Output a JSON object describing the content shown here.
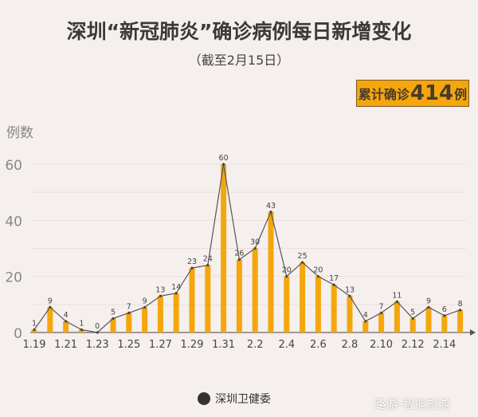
{
  "title": "深圳“新冠肺炎”确诊病例每日新增变化",
  "subtitle": "（截至2月15日）",
  "badge": {
    "prefix": "累计确诊",
    "total": "414",
    "suffix": "例"
  },
  "footer": {
    "source": "深圳卫健委"
  },
  "watermark": "路游-智能旅游",
  "colors": {
    "bar": "#f4a60c",
    "line": "#555555",
    "background": "#f5efed"
  },
  "chart_data": {
    "type": "bar",
    "ylabel": "例数",
    "ylim": [
      0,
      60
    ],
    "yticks": [
      0,
      20,
      40,
      60
    ],
    "grid": true,
    "categories": [
      "1.19",
      "1.20",
      "1.21",
      "1.22",
      "1.23",
      "1.24",
      "1.25",
      "1.26",
      "1.27",
      "1.28",
      "1.29",
      "1.30",
      "1.31",
      "2.1",
      "2.2",
      "2.3",
      "2.4",
      "2.5",
      "2.6",
      "2.7",
      "2.8",
      "2.9",
      "2.10",
      "2.11",
      "2.12",
      "2.13",
      "2.14",
      "2.15"
    ],
    "xtick_labels": [
      "1.19",
      "1.21",
      "1.23",
      "1.25",
      "1.27",
      "1.29",
      "1.31",
      "2.2",
      "2.4",
      "2.6",
      "2.8",
      "2.10",
      "2.12",
      "2.14"
    ],
    "values": [
      1,
      9,
      4,
      1,
      0,
      5,
      7,
      9,
      13,
      14,
      23,
      24,
      60,
      26,
      30,
      43,
      20,
      25,
      20,
      17,
      13,
      4,
      7,
      11,
      5,
      9,
      6,
      8
    ],
    "overlay_line": true
  }
}
